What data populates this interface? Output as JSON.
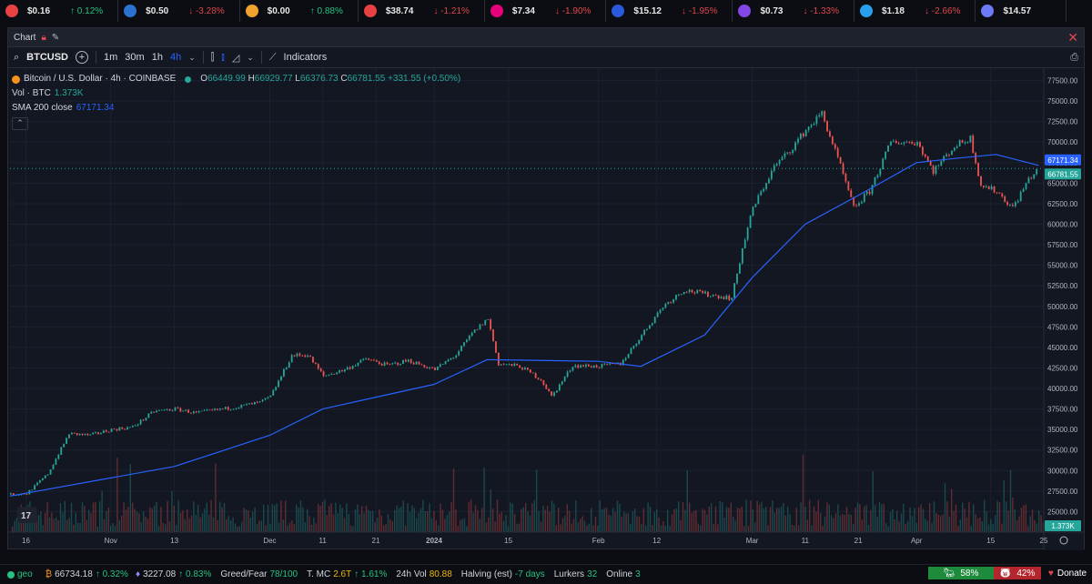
{
  "ticker": [
    {
      "icon": "token-icon",
      "color": "#e84142",
      "price": "$0.16",
      "change": "↑ 0.12%",
      "dir": "up"
    },
    {
      "icon": "cardano-icon",
      "color": "#2a71d0",
      "price": "$0.50",
      "change": "↓ -3.28%",
      "dir": "dn"
    },
    {
      "icon": "shiba-icon",
      "color": "#f0a32e",
      "price": "$0.00",
      "change": "↑ 0.88%",
      "dir": "up"
    },
    {
      "icon": "avalanche-icon",
      "color": "#e84142",
      "price": "$38.74",
      "change": "↓ -1.21%",
      "dir": "dn"
    },
    {
      "icon": "polkadot-icon",
      "color": "#e6007a",
      "price": "$7.34",
      "change": "↓ -1.90%",
      "dir": "dn"
    },
    {
      "icon": "chainlink-icon",
      "color": "#2a5ada",
      "price": "$15.12",
      "change": "↓ -1.95%",
      "dir": "dn"
    },
    {
      "icon": "polygon-icon",
      "color": "#8247e5",
      "price": "$0.73",
      "change": "↓ -1.33%",
      "dir": "dn"
    },
    {
      "icon": "arbitrum-icon",
      "color": "#28a0f0",
      "price": "$1.18",
      "change": "↓ -2.66%",
      "dir": "dn"
    },
    {
      "icon": "infinity-icon",
      "color": "#6e7bf7",
      "price": "$14.57",
      "change": "",
      "dir": "dn"
    }
  ],
  "window": {
    "title": "Chart",
    "close": "✕"
  },
  "toolbar": {
    "symbol": "BTCUSD",
    "intervals": [
      "1m",
      "30m",
      "1h",
      "4h"
    ],
    "active_interval": "4h",
    "indicators": "Indicators"
  },
  "legend": {
    "title": "Bitcoin / U.S. Dollar · 4h · COINBASE",
    "o_label": "O",
    "o": "66449.99",
    "h_label": "H",
    "h": "66929.77",
    "l_label": "L",
    "l": "66376.73",
    "c_label": "C",
    "c": "66781.55",
    "chg": "+331.55 (+0.50%)",
    "vol_label": "Vol · BTC",
    "vol": "1.373K",
    "sma_label": "SMA 200 close",
    "sma": "67171.34"
  },
  "chart_data": {
    "type": "line",
    "series": [
      {
        "name": "Bitcoin / U.S. Dollar · 4h · COINBASE",
        "color": "#26a69a",
        "x": [
          "Oct 13",
          "Oct 16",
          "Oct 20",
          "Oct 24",
          "Oct 28",
          "Nov 1",
          "Nov 5",
          "Nov 9",
          "Nov 13",
          "Nov 17",
          "Nov 21",
          "Nov 25",
          "Nov 29",
          "Dec 1",
          "Dec 5",
          "Dec 8",
          "Dec 11",
          "Dec 15",
          "Dec 19",
          "Dec 23",
          "Dec 27",
          "Jan 1",
          "Jan 5",
          "Jan 8",
          "Jan 11",
          "Jan 13",
          "Jan 17",
          "Jan 21",
          "Jan 23",
          "Jan 27",
          "Feb 1",
          "Feb 5",
          "Feb 9",
          "Feb 13",
          "Feb 17",
          "Feb 21",
          "Feb 26",
          "Feb 28",
          "Mar 1",
          "Mar 5",
          "Mar 8",
          "Mar 11",
          "Mar 14",
          "Mar 17",
          "Mar 20",
          "Mar 23",
          "Mar 27",
          "Apr 1",
          "Apr 4",
          "Apr 8",
          "Apr 11",
          "Apr 13",
          "Apr 16",
          "Apr 19",
          "Apr 22",
          "Apr 24"
        ],
        "y": [
          27100,
          27200,
          29600,
          34500,
          34300,
          35000,
          35300,
          37200,
          37500,
          37000,
          37400,
          37800,
          38300,
          39000,
          44000,
          44100,
          41500,
          42300,
          43600,
          42800,
          43400,
          42300,
          44100,
          46700,
          48500,
          43000,
          42700,
          41100,
          39000,
          42800,
          42700,
          43000,
          46500,
          50000,
          52000,
          51500,
          51000,
          57000,
          62000,
          67000,
          69000,
          71500,
          73500,
          68000,
          62000,
          64000,
          70000,
          70000,
          66500,
          69500,
          70500,
          64800,
          64000,
          62000,
          65500,
          66781
        ]
      },
      {
        "name": "SMA 200 close",
        "color": "#2962ff",
        "x": [
          "Oct 13",
          "Nov 13",
          "Dec 1",
          "Dec 11",
          "Jan 1",
          "Jan 11",
          "Feb 1",
          "Feb 9",
          "Feb 21",
          "Mar 1",
          "Mar 11",
          "Mar 21",
          "Apr 1",
          "Apr 8",
          "Apr 16",
          "Apr 24"
        ],
        "y": [
          26900,
          30500,
          34300,
          37500,
          40500,
          43500,
          43300,
          42700,
          46500,
          53500,
          60000,
          63500,
          67500,
          68000,
          68500,
          67171
        ]
      }
    ],
    "yticks": [
      "77500.00",
      "75000.00",
      "72500.00",
      "70000.00",
      "67500.00",
      "65000.00",
      "62500.00",
      "60000.00",
      "57500.00",
      "55000.00",
      "52500.00",
      "50000.00",
      "47500.00",
      "45000.00",
      "42500.00",
      "40000.00",
      "37500.00",
      "35000.00",
      "32500.00",
      "30000.00",
      "27500.00",
      "25000.00"
    ],
    "xticks": [
      "16",
      "Nov",
      "13",
      "Dec",
      "11",
      "21",
      "2024",
      "15",
      "Feb",
      "12",
      "Mar",
      "11",
      "21",
      "Apr",
      "15",
      "25"
    ],
    "ylim": [
      22500,
      79000
    ],
    "price_labels": [
      "67171.34",
      "66781.55",
      "1.373K"
    ],
    "grid": true
  },
  "status": {
    "geo": "geo",
    "btc": "66734.18",
    "btc_chg": "↑ 0.32%",
    "eth": "3227.08",
    "eth_chg": "↑ 0.83%",
    "fg_label": "Greed/Fear",
    "fg": "78/100",
    "mc_label": "T. MC",
    "mc": "2.6T",
    "mc_chg": "↑ 1.61%",
    "vol_label": "24h Vol",
    "vol": "80.88",
    "halving": "Halving (est)",
    "halving_val": "-7 days",
    "lurkers_label": "Lurkers",
    "lurkers": "32",
    "online_label": "Online",
    "online": "3",
    "bull": "58%",
    "bear": "42%",
    "donate": "Donate"
  },
  "colors": {
    "up": "#26a69a",
    "down": "#ef5350",
    "sma": "#2962ff",
    "bg": "#131722"
  }
}
